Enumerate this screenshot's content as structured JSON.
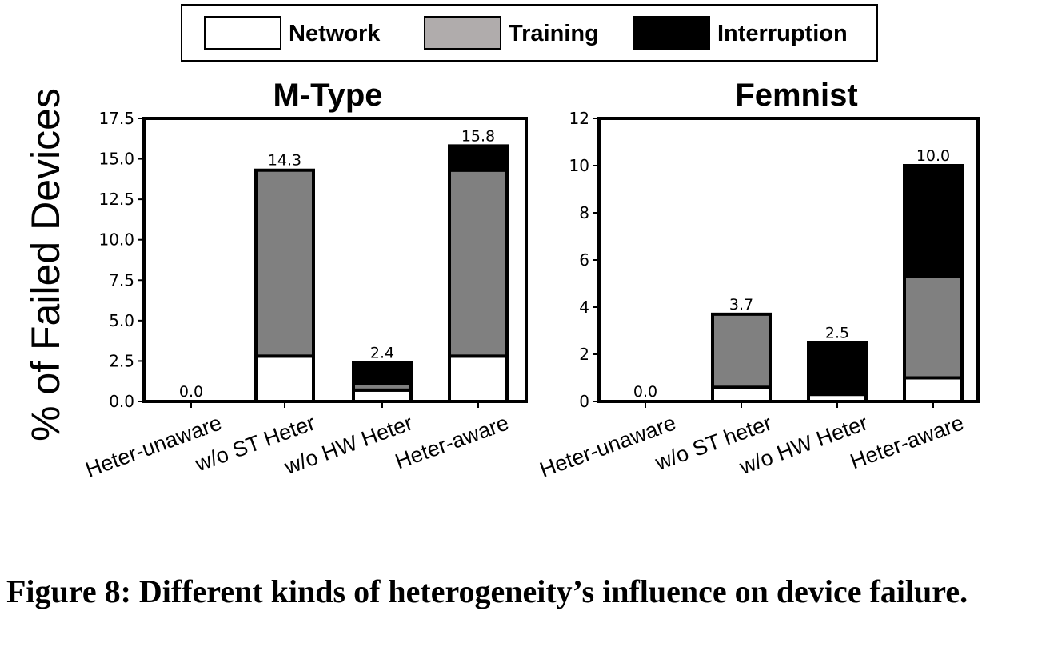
{
  "legend": [
    "Network",
    "Training",
    "Interruption"
  ],
  "colors": {
    "Network": "#ffffff",
    "Training": "#808080",
    "Interruption": "#000000",
    "legend_training": "#b0acac"
  },
  "ylabel": "% of Failed Devices",
  "caption": "Figure 8: Different kinds of heterogeneity’s influence on device failure.",
  "chart_data": [
    {
      "type": "bar",
      "stacked": true,
      "title": "M-Type",
      "xlabel": "",
      "ylabel": "% of Failed Devices",
      "ylim": [
        0,
        17.5
      ],
      "yticks": [
        "0.0",
        "2.5",
        "5.0",
        "7.5",
        "10.0",
        "12.5",
        "15.0",
        "17.5"
      ],
      "categories": [
        "Heter-unaware",
        "w/o ST Heter",
        "w/o HW Heter",
        "Heter-aware"
      ],
      "series": [
        {
          "name": "Network",
          "values": [
            0.0,
            2.8,
            0.7,
            2.8
          ]
        },
        {
          "name": "Training",
          "values": [
            0.0,
            11.5,
            0.4,
            11.5
          ]
        },
        {
          "name": "Interruption",
          "values": [
            0.0,
            0.0,
            1.3,
            1.5
          ]
        }
      ],
      "totals": [
        "0.0",
        "14.3",
        "2.4",
        "15.8"
      ],
      "grid": false
    },
    {
      "type": "bar",
      "stacked": true,
      "title": "Femnist",
      "xlabel": "",
      "ylabel": "",
      "ylim": [
        0,
        12
      ],
      "yticks": [
        "0",
        "2",
        "4",
        "6",
        "8",
        "10",
        "12"
      ],
      "categories": [
        "Heter-unaware",
        "w/o ST heter",
        "w/o HW Heter",
        "Heter-aware"
      ],
      "series": [
        {
          "name": "Network",
          "values": [
            0.0,
            0.6,
            0.3,
            1.0
          ]
        },
        {
          "name": "Training",
          "values": [
            0.0,
            3.1,
            0.0,
            4.3
          ]
        },
        {
          "name": "Interruption",
          "values": [
            0.0,
            0.0,
            2.2,
            4.7
          ]
        }
      ],
      "totals": [
        "0.0",
        "3.7",
        "2.5",
        "10.0"
      ],
      "grid": false
    }
  ]
}
